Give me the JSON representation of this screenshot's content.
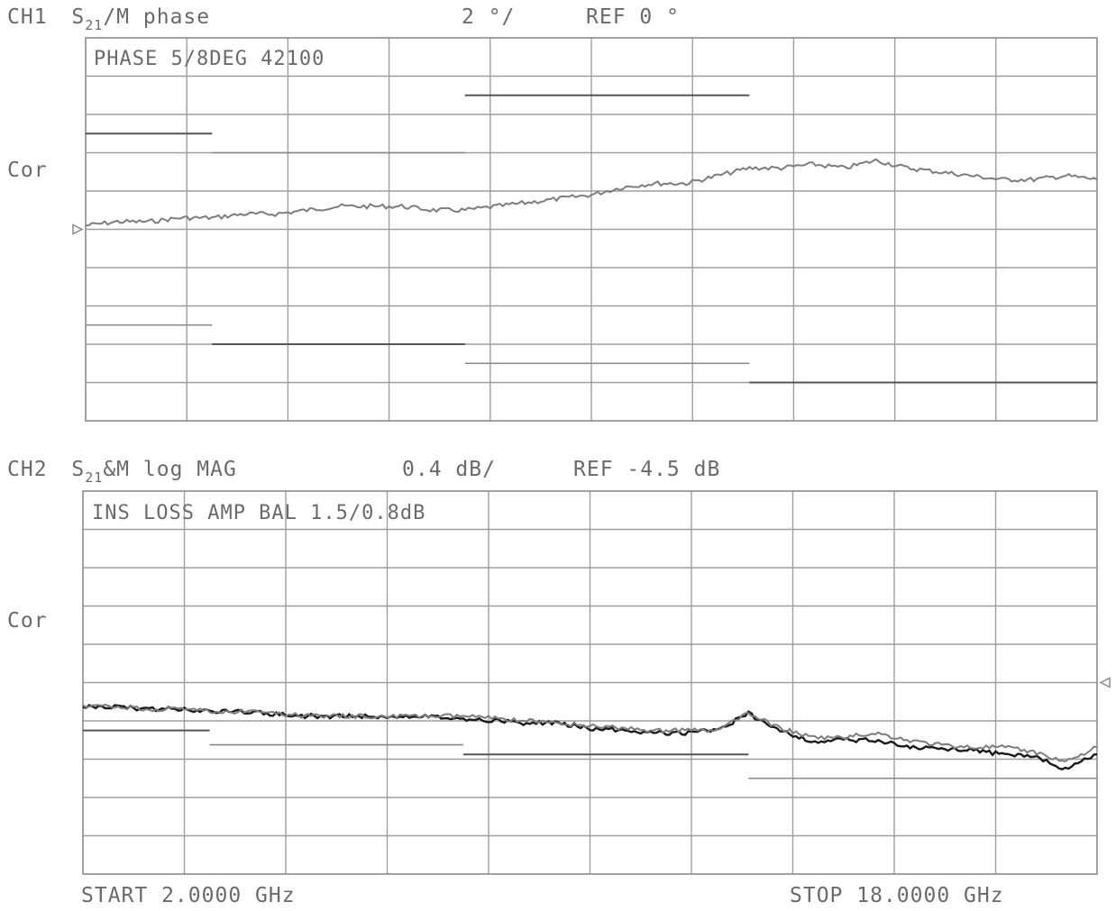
{
  "chart_data": [
    {
      "type": "line",
      "channel": "CH1",
      "title_parts": {
        "ch": "CH1",
        "s": "S",
        "sub": "21",
        "rest": "/M phase",
        "scale": "2 °/",
        "ref": "REF 0 °"
      },
      "annotation": "PHASE 5/8DEG 42100",
      "correction": "Cor",
      "scale_per_div": 2,
      "ref_value": 0,
      "unit": "deg",
      "x_range_ghz": [
        2.0,
        18.0
      ],
      "divisions": {
        "x": 10,
        "y": 10
      },
      "ylim": [
        -10,
        10
      ],
      "grid": true,
      "ref_marker": "left",
      "limit_lines": [
        {
          "x": [
            2.0,
            4.0
          ],
          "y": 5.0
        },
        {
          "x": [
            4.0,
            8.0
          ],
          "y": 4.0
        },
        {
          "x": [
            8.0,
            12.5
          ],
          "y": 7.0
        },
        {
          "x": [
            2.0,
            4.0
          ],
          "y": -5.0
        },
        {
          "x": [
            4.0,
            8.0
          ],
          "y": -6.0
        },
        {
          "x": [
            8.0,
            12.5
          ],
          "y": -7.0
        },
        {
          "x": [
            12.5,
            18.0
          ],
          "y": -8.0
        }
      ],
      "series": [
        {
          "color": "#7d7d7d",
          "x": [
            2.0,
            2.5,
            3.0,
            3.5,
            4.0,
            4.5,
            5.0,
            5.5,
            6.0,
            6.5,
            7.0,
            7.5,
            8.0,
            8.5,
            9.0,
            9.5,
            10.0,
            10.5,
            11.0,
            11.5,
            12.0,
            12.5,
            13.0,
            13.5,
            14.0,
            14.5,
            15.0,
            15.5,
            16.0,
            16.5,
            17.0,
            17.5,
            18.0
          ],
          "y": [
            0.2,
            0.4,
            0.4,
            0.6,
            0.6,
            0.8,
            0.8,
            1.0,
            1.2,
            1.2,
            1.2,
            1.0,
            1.0,
            1.2,
            1.4,
            1.6,
            1.8,
            2.2,
            2.4,
            2.4,
            2.8,
            3.2,
            3.2,
            3.4,
            3.2,
            3.6,
            3.2,
            3.0,
            2.8,
            2.6,
            2.6,
            2.8,
            2.6
          ]
        }
      ]
    },
    {
      "type": "line",
      "channel": "CH2",
      "title_parts": {
        "ch": "CH2",
        "s": "S",
        "sub": "21",
        "rest": "&M log MAG",
        "scale": "0.4 dB/",
        "ref": "REF -4.5 dB"
      },
      "annotation": "INS LOSS AMP BAL 1.5/0.8dB",
      "correction": "Cor",
      "scale_per_div": 0.4,
      "ref_value": -4.5,
      "unit": "dB",
      "x_range_ghz": [
        2.0,
        18.0
      ],
      "divisions": {
        "x": 10,
        "y": 10
      },
      "ylim": [
        -8.5,
        -0.5
      ],
      "grid": true,
      "ref_marker": "right",
      "limit_lines": [
        {
          "x": [
            2.0,
            4.0
          ],
          "y": -5.5
        },
        {
          "x": [
            4.0,
            8.0
          ],
          "y": -5.8
        },
        {
          "x": [
            8.0,
            12.5
          ],
          "y": -6.0
        },
        {
          "x": [
            12.5,
            18.0
          ],
          "y": -6.5
        }
      ],
      "start_label": "START 2.0000 GHz",
      "stop_label": "STOP 18.0000 GHz",
      "series": [
        {
          "color": "#1a1a1a",
          "x": [
            2.0,
            2.5,
            3.0,
            3.5,
            4.0,
            4.5,
            5.0,
            5.5,
            6.0,
            6.5,
            7.0,
            7.5,
            8.0,
            8.5,
            9.0,
            9.5,
            10.0,
            10.5,
            11.0,
            11.5,
            12.0,
            12.5,
            13.0,
            13.5,
            14.0,
            14.5,
            15.0,
            15.5,
            16.0,
            16.5,
            17.0,
            17.5,
            18.0
          ],
          "y": [
            -5.0,
            -5.0,
            -5.05,
            -5.05,
            -5.1,
            -5.1,
            -5.15,
            -5.2,
            -5.2,
            -5.2,
            -5.2,
            -5.2,
            -5.25,
            -5.3,
            -5.35,
            -5.35,
            -5.45,
            -5.5,
            -5.55,
            -5.55,
            -5.5,
            -5.15,
            -5.5,
            -5.75,
            -5.7,
            -5.7,
            -5.85,
            -5.9,
            -5.9,
            -6.0,
            -6.05,
            -6.3,
            -6.0
          ]
        },
        {
          "color": "#7d7d7d",
          "x": [
            2.0,
            2.5,
            3.0,
            3.5,
            4.0,
            4.5,
            5.0,
            5.5,
            6.0,
            6.5,
            7.0,
            7.5,
            8.0,
            8.5,
            9.0,
            9.5,
            10.0,
            10.5,
            11.0,
            11.5,
            12.0,
            12.5,
            13.0,
            13.5,
            14.0,
            14.5,
            15.0,
            15.5,
            16.0,
            16.5,
            17.0,
            17.5,
            18.0
          ],
          "y": [
            -5.0,
            -5.0,
            -5.05,
            -5.05,
            -5.1,
            -5.1,
            -5.15,
            -5.2,
            -5.2,
            -5.2,
            -5.2,
            -5.2,
            -5.2,
            -5.25,
            -5.3,
            -5.35,
            -5.4,
            -5.45,
            -5.5,
            -5.5,
            -5.5,
            -5.15,
            -5.45,
            -5.65,
            -5.65,
            -5.55,
            -5.7,
            -5.8,
            -5.85,
            -5.85,
            -5.95,
            -6.15,
            -5.85
          ]
        }
      ]
    }
  ]
}
